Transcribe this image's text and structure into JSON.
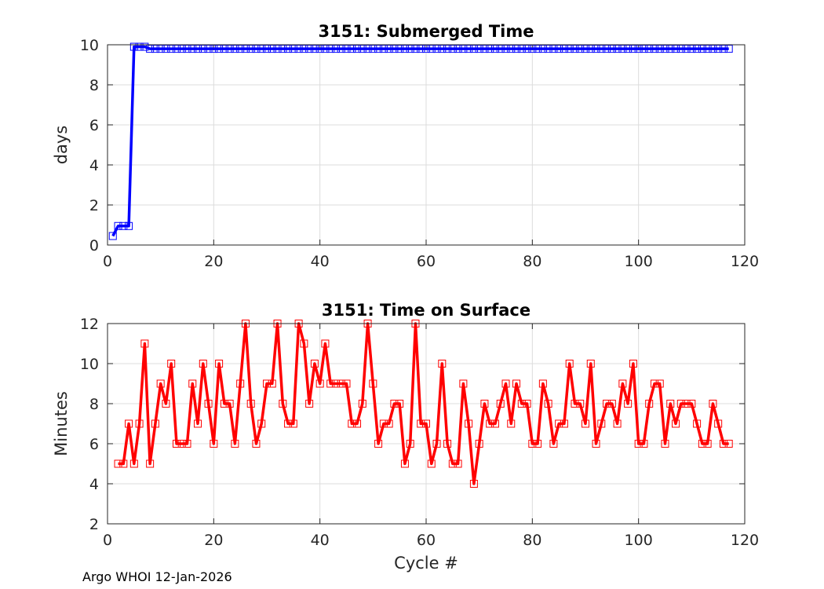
{
  "footer": "Argo WHOI 12-Jan-2026",
  "chart_data": [
    {
      "type": "line",
      "title": "3151: Submerged Time",
      "xlabel": "",
      "ylabel": "days",
      "xlim": [
        0,
        120
      ],
      "ylim": [
        0,
        10
      ],
      "xticks": [
        0,
        20,
        40,
        60,
        80,
        100,
        120
      ],
      "yticks": [
        0,
        2,
        4,
        6,
        8,
        10
      ],
      "grid": true,
      "marker": "square",
      "color": "#0000ff",
      "series": [
        {
          "x": [
            1,
            2,
            3,
            4,
            5,
            6,
            7,
            8,
            9,
            10,
            11,
            12,
            13,
            14,
            15,
            16,
            17,
            18,
            19,
            20,
            21,
            22,
            23,
            24,
            25,
            26,
            27,
            28,
            29,
            30,
            31,
            32,
            33,
            34,
            35,
            36,
            37,
            38,
            39,
            40,
            41,
            42,
            43,
            44,
            45,
            46,
            47,
            48,
            49,
            50,
            51,
            52,
            53,
            54,
            55,
            56,
            57,
            58,
            59,
            60,
            61,
            62,
            63,
            64,
            65,
            66,
            67,
            68,
            69,
            70,
            71,
            72,
            73,
            74,
            75,
            76,
            77,
            78,
            79,
            80,
            81,
            82,
            83,
            84,
            85,
            86,
            87,
            88,
            89,
            90,
            91,
            92,
            93,
            94,
            95,
            96,
            97,
            98,
            99,
            100,
            101,
            102,
            103,
            104,
            105,
            106,
            107,
            108,
            109,
            110,
            111,
            112,
            113,
            114,
            115,
            116,
            117
          ],
          "y": [
            0.45,
            0.95,
            0.95,
            0.95,
            9.9,
            9.9,
            9.9,
            9.8,
            9.8,
            9.8,
            9.8,
            9.8,
            9.8,
            9.8,
            9.8,
            9.8,
            9.8,
            9.8,
            9.8,
            9.8,
            9.8,
            9.8,
            9.8,
            9.8,
            9.8,
            9.8,
            9.8,
            9.8,
            9.8,
            9.8,
            9.8,
            9.8,
            9.8,
            9.8,
            9.8,
            9.8,
            9.8,
            9.8,
            9.8,
            9.8,
            9.8,
            9.8,
            9.8,
            9.8,
            9.8,
            9.8,
            9.8,
            9.8,
            9.8,
            9.8,
            9.8,
            9.8,
            9.8,
            9.8,
            9.8,
            9.8,
            9.8,
            9.8,
            9.8,
            9.8,
            9.8,
            9.8,
            9.8,
            9.8,
            9.8,
            9.8,
            9.8,
            9.8,
            9.8,
            9.8,
            9.8,
            9.8,
            9.8,
            9.8,
            9.8,
            9.8,
            9.8,
            9.8,
            9.8,
            9.8,
            9.8,
            9.8,
            9.8,
            9.8,
            9.8,
            9.8,
            9.8,
            9.8,
            9.8,
            9.8,
            9.8,
            9.8,
            9.8,
            9.8,
            9.8,
            9.8,
            9.8,
            9.8,
            9.8,
            9.8,
            9.8,
            9.8,
            9.8,
            9.8,
            9.8,
            9.8,
            9.8,
            9.8,
            9.8,
            9.8,
            9.8,
            9.8,
            9.8,
            9.8,
            9.8,
            9.8,
            9.8
          ]
        }
      ]
    },
    {
      "type": "line",
      "title": "3151: Time on Surface",
      "xlabel": "Cycle #",
      "ylabel": "Minutes",
      "xlim": [
        0,
        120
      ],
      "ylim": [
        2,
        12
      ],
      "xticks": [
        0,
        20,
        40,
        60,
        80,
        100,
        120
      ],
      "yticks": [
        2,
        4,
        6,
        8,
        10,
        12
      ],
      "grid": true,
      "marker": "square",
      "color": "#ff0000",
      "series": [
        {
          "x": [
            2,
            3,
            4,
            5,
            6,
            7,
            8,
            9,
            10,
            11,
            12,
            13,
            14,
            15,
            16,
            17,
            18,
            19,
            20,
            21,
            22,
            23,
            24,
            25,
            26,
            27,
            28,
            29,
            30,
            31,
            32,
            33,
            34,
            35,
            36,
            37,
            38,
            39,
            40,
            41,
            42,
            43,
            44,
            45,
            46,
            47,
            48,
            49,
            50,
            51,
            52,
            53,
            54,
            55,
            56,
            57,
            58,
            59,
            60,
            61,
            62,
            63,
            64,
            65,
            66,
            67,
            68,
            69,
            70,
            71,
            72,
            73,
            74,
            75,
            76,
            77,
            78,
            79,
            80,
            81,
            82,
            83,
            84,
            85,
            86,
            87,
            88,
            89,
            90,
            91,
            92,
            93,
            94,
            95,
            96,
            97,
            98,
            99,
            100,
            101,
            102,
            103,
            104,
            105,
            106,
            107,
            108,
            109,
            110,
            111,
            112,
            113,
            114,
            115,
            116,
            117
          ],
          "y": [
            5,
            5,
            7,
            5,
            7,
            11,
            5,
            7,
            9,
            8,
            10,
            6,
            6,
            6,
            9,
            7,
            10,
            8,
            6,
            10,
            8,
            8,
            6,
            9,
            12,
            8,
            6,
            7,
            9,
            9,
            12,
            8,
            7,
            7,
            12,
            11,
            8,
            10,
            9,
            11,
            9,
            9,
            9,
            9,
            7,
            7,
            8,
            12,
            9,
            6,
            7,
            7,
            8,
            8,
            5,
            6,
            12,
            7,
            7,
            5,
            6,
            10,
            6,
            5,
            5,
            9,
            7,
            4,
            6,
            8,
            7,
            7,
            8,
            9,
            7,
            9,
            8,
            8,
            6,
            6,
            9,
            8,
            6,
            7,
            7,
            10,
            8,
            8,
            7,
            10,
            6,
            7,
            8,
            8,
            7,
            9,
            8,
            10,
            6,
            6,
            8,
            9,
            9,
            6,
            8,
            7,
            8,
            8,
            8,
            7,
            6,
            6,
            8,
            7,
            6,
            6
          ]
        }
      ]
    }
  ]
}
